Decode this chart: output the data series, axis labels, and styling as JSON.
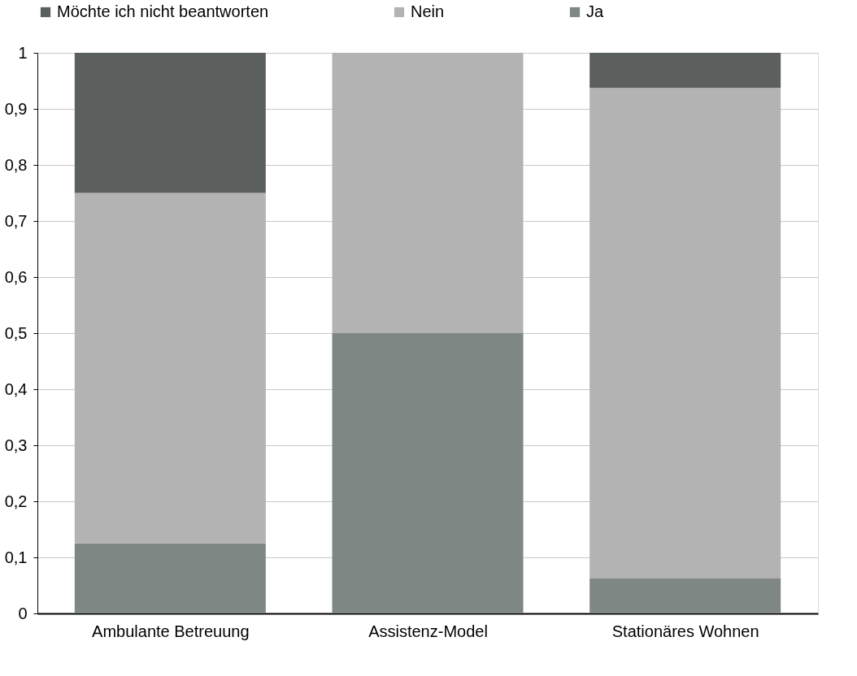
{
  "chart_data": {
    "type": "bar",
    "stacked": true,
    "categories": [
      "Ambulante Betreuung",
      "Assistenz-Model",
      "Stationäres Wohnen"
    ],
    "series": [
      {
        "name": "Ja",
        "color": "#7f8784",
        "values": [
          0.125,
          0.5,
          0.0625
        ]
      },
      {
        "name": "Nein",
        "color": "#b3b3b3",
        "values": [
          0.625,
          0.5,
          0.875
        ]
      },
      {
        "name": "Möchte ich nicht beantworten",
        "color": "#5b605e",
        "values": [
          0.25,
          0,
          0.0625
        ]
      }
    ],
    "ylim": [
      0,
      1
    ],
    "yticks": [
      0,
      {
        "value": 0.1,
        "label": "0,1"
      },
      {
        "value": 0.2,
        "label": "0,2"
      },
      {
        "value": 0.3,
        "label": "0,3"
      },
      {
        "value": 0.4,
        "label": "0,4"
      },
      {
        "value": 0.5,
        "label": "0,5"
      },
      {
        "value": 0.6,
        "label": "0,6"
      },
      {
        "value": 0.7,
        "label": "0,7"
      },
      {
        "value": 0.8,
        "label": "0,8"
      },
      {
        "value": 0.9,
        "label": "0,9"
      },
      1
    ],
    "grid": "y",
    "legend": "top"
  }
}
